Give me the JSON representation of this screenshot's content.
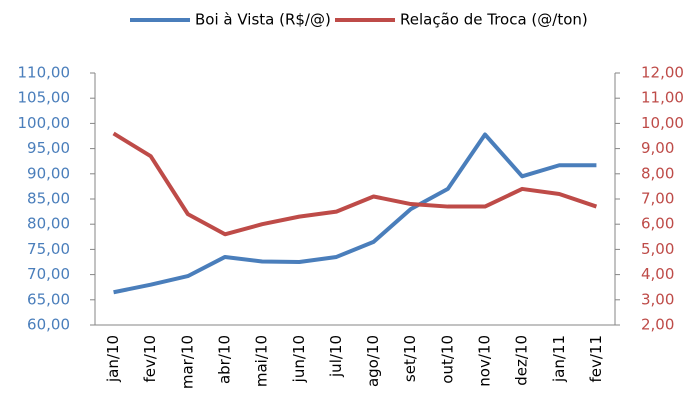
{
  "chart_data": {
    "type": "line",
    "categories": [
      "jan/10",
      "fev/10",
      "mar/10",
      "abr/10",
      "mai/10",
      "jun/10",
      "jul/10",
      "ago/10",
      "set/10",
      "out/10",
      "nov/10",
      "dez/10",
      "jan/11",
      "fev/11"
    ],
    "series": [
      {
        "name": "Boi à Vista (R$/@)",
        "color": "#4a7ebb",
        "values": [
          66.5,
          68.0,
          69.7,
          73.5,
          72.6,
          72.5,
          73.5,
          76.5,
          83.0,
          87.0,
          97.8,
          89.5,
          91.7,
          91.7
        ]
      },
      {
        "name": "Relação de Troca (@/ton)",
        "color": "#be4b48",
        "axis": "y2",
        "values": [
          9.6,
          8.7,
          6.4,
          5.6,
          6.0,
          6.3,
          6.5,
          7.1,
          6.8,
          6.7,
          6.7,
          7.4,
          7.2,
          6.7
        ]
      }
    ],
    "ylim": [
      60,
      110
    ],
    "yticks": [
      {
        "value": 60,
        "label": "60,00"
      },
      {
        "value": 65,
        "label": "65,00"
      },
      {
        "value": 70,
        "label": "70,00"
      },
      {
        "value": 75,
        "label": "75,00"
      },
      {
        "value": 80,
        "label": "80,00"
      },
      {
        "value": 85,
        "label": "85,00"
      },
      {
        "value": 90,
        "label": "90,00"
      },
      {
        "value": 95,
        "label": "95,00"
      },
      {
        "value": 100,
        "label": "100,00"
      },
      {
        "value": 105,
        "label": "105,00"
      },
      {
        "value": 110,
        "label": "110,00"
      }
    ],
    "y2lim": [
      2,
      12
    ],
    "y2ticks": [
      {
        "value": 2,
        "label": "2,00"
      },
      {
        "value": 3,
        "label": "3,00"
      },
      {
        "value": 4,
        "label": "4,00"
      },
      {
        "value": 5,
        "label": "5,00"
      },
      {
        "value": 6,
        "label": "6,00"
      },
      {
        "value": 7,
        "label": "7,00"
      },
      {
        "value": 8,
        "label": "8,00"
      },
      {
        "value": 9,
        "label": "9,00"
      },
      {
        "value": 10,
        "label": "10,00"
      },
      {
        "value": 11,
        "label": "11,00"
      },
      {
        "value": 12,
        "label": "12,00"
      }
    ],
    "grid": false,
    "legend": "top"
  }
}
